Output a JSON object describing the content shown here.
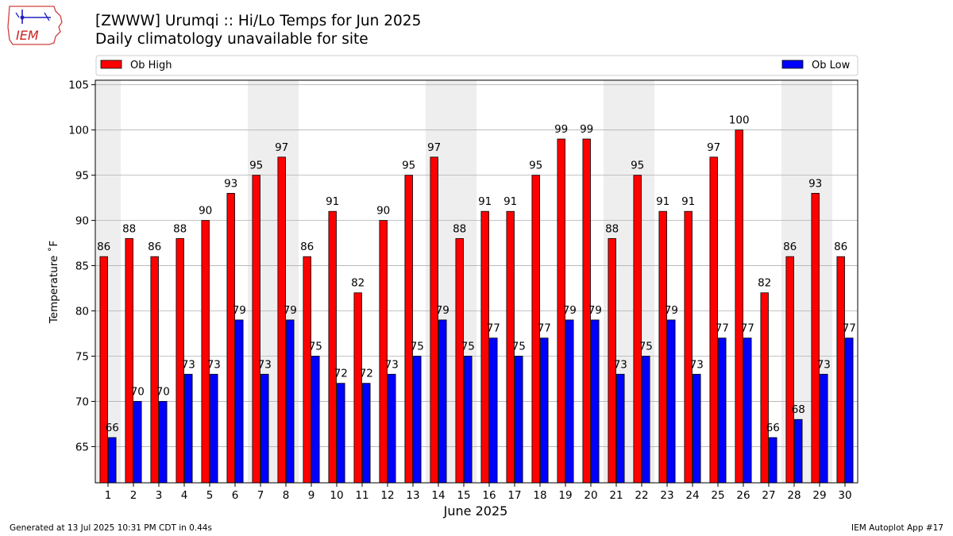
{
  "logo": {
    "text": "IEM",
    "icon": "iowa-state-weather-logo"
  },
  "title": "[ZWWW] Urumqi :: Hi/Lo Temps for Jun 2025",
  "subtitle": "Daily climatology unavailable for site",
  "footer": {
    "left": "Generated at 13 Jul 2025 10:31 PM CDT in 0.44s",
    "right": "IEM Autoplot App #17"
  },
  "colors": {
    "high": "#ff0000",
    "low": "#0000ff",
    "weekend_shade": "#eeeeee",
    "grid": "#b0b0b0"
  },
  "chart_data": {
    "type": "bar",
    "title": "[ZWWW] Urumqi :: Hi/Lo Temps for Jun 2025",
    "subtitle": "Daily climatology unavailable for site",
    "xlabel": "June 2025",
    "ylabel": "Temperature $^\\circ$F",
    "ylabel_display": "Temperature ˚F",
    "ylim": [
      61,
      105.5
    ],
    "yticks": [
      65,
      70,
      75,
      80,
      85,
      90,
      95,
      100,
      105
    ],
    "grid": true,
    "legend_placement": "top (above plot)",
    "categories": [
      "1",
      "2",
      "3",
      "4",
      "5",
      "6",
      "7",
      "8",
      "9",
      "10",
      "11",
      "12",
      "13",
      "14",
      "15",
      "16",
      "17",
      "18",
      "19",
      "20",
      "21",
      "22",
      "23",
      "24",
      "25",
      "26",
      "27",
      "28",
      "29",
      "30"
    ],
    "shaded_days": [
      1,
      7,
      8,
      14,
      15,
      21,
      22,
      28,
      29
    ],
    "series": [
      {
        "name": "Ob High",
        "color": "#ff0000",
        "values": [
          86,
          88,
          86,
          88,
          90,
          93,
          95,
          97,
          86,
          91,
          82,
          90,
          95,
          97,
          88,
          91,
          91,
          95,
          99,
          99,
          88,
          95,
          91,
          91,
          97,
          100,
          82,
          86,
          93,
          86
        ],
        "labels": [
          "86",
          "88",
          "86",
          "88",
          "90",
          "93",
          "95",
          "97",
          "86",
          "91",
          "82",
          "90",
          "95",
          "97",
          "88",
          "91",
          "91",
          "95",
          "99",
          "99",
          "88",
          "95",
          "91",
          "91",
          "97",
          "100",
          "82",
          "86",
          "93",
          "86"
        ]
      },
      {
        "name": "Ob Low",
        "color": "#0000ff",
        "values": [
          66,
          70,
          70,
          73,
          73,
          79,
          73,
          79,
          75,
          72,
          72,
          73,
          75,
          79,
          75,
          77,
          75,
          77,
          79,
          79,
          73,
          75,
          79,
          73,
          77,
          77,
          66,
          68,
          73,
          77
        ],
        "labels": [
          "66",
          "70",
          "70",
          "73",
          "73",
          "79",
          "73",
          "79",
          "75",
          "72",
          "72",
          "73",
          "75",
          "79",
          "75",
          "77",
          "75",
          "77",
          "79",
          "79",
          "73",
          "75",
          "79",
          "73",
          "77",
          "77",
          "66",
          "68",
          "73",
          "77"
        ]
      }
    ]
  }
}
